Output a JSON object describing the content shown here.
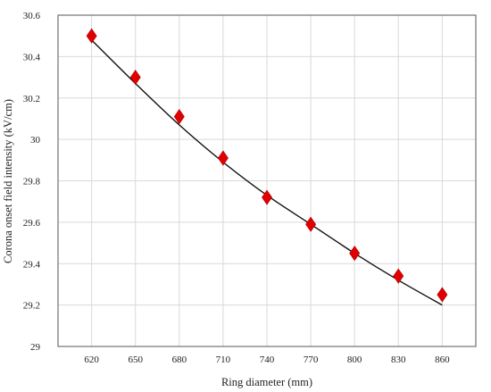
{
  "chart_data": {
    "type": "scatter",
    "title": "",
    "xlabel": "Ring diameter (mm)",
    "ylabel": "Corona onset field intensity (kV/cm)",
    "x_ticks": [
      620,
      650,
      680,
      710,
      740,
      770,
      800,
      830,
      860
    ],
    "y_ticks": [
      29,
      29.2,
      29.4,
      29.6,
      29.8,
      30,
      30.2,
      30.4,
      30.6
    ],
    "y_tick_labels": [
      "29",
      "29.2",
      "29.4",
      "29.6",
      "29.8",
      "30",
      "30.2",
      "30.4",
      "30.6"
    ],
    "xlim": [
      597,
      883
    ],
    "ylim": [
      29,
      30.6
    ],
    "grid": true,
    "series": [
      {
        "marker": "diamond",
        "color": "#e00000",
        "x": [
          620,
          650,
          680,
          710,
          740,
          770,
          800,
          830,
          860
        ],
        "y": [
          30.5,
          30.3,
          30.11,
          29.91,
          29.72,
          29.59,
          29.45,
          29.34,
          29.25
        ]
      },
      {
        "line": "fit",
        "color": "#111111",
        "x": [
          620,
          650,
          680,
          710,
          740,
          770,
          800,
          830,
          860
        ],
        "y": [
          30.48,
          30.27,
          30.07,
          29.89,
          29.73,
          29.59,
          29.45,
          29.32,
          29.2
        ]
      }
    ]
  }
}
